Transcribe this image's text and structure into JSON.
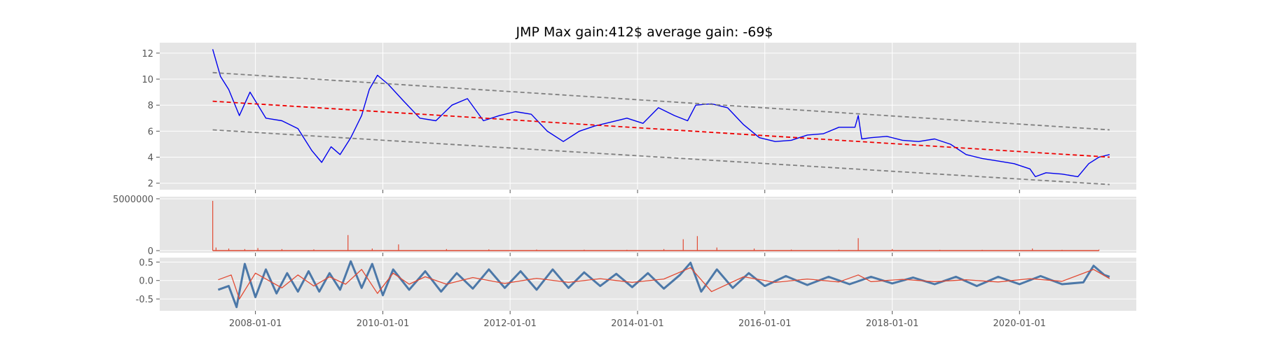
{
  "chart_data": [
    {
      "type": "line",
      "title": "JMP Max gain:412$  average gain: -69$",
      "ylim": [
        1.5,
        12.8
      ],
      "yticks": [
        2,
        4,
        6,
        8,
        10,
        12
      ],
      "grid": true,
      "series": [
        {
          "color": "#0000ee",
          "x": [
            "2007-05-01",
            "2007-06-15",
            "2007-08-01",
            "2007-10-01",
            "2007-12-01",
            "2008-03-01",
            "2008-06-01",
            "2008-09-01",
            "2008-11-20",
            "2009-01-15",
            "2009-03-10",
            "2009-05-01",
            "2009-07-01",
            "2009-09-01",
            "2009-10-15",
            "2009-12-01",
            "2010-02-01",
            "2010-05-01",
            "2010-08-01",
            "2010-11-01",
            "2011-02-01",
            "2011-05-01",
            "2011-08-01",
            "2011-11-01",
            "2012-02-01",
            "2012-05-01",
            "2012-08-01",
            "2012-11-01",
            "2013-02-01",
            "2013-05-01",
            "2013-08-01",
            "2013-11-01",
            "2014-02-01",
            "2014-05-01",
            "2014-08-01",
            "2014-10-15",
            "2014-12-01",
            "2015-03-01",
            "2015-06-01",
            "2015-09-01",
            "2015-12-01",
            "2016-03-01",
            "2016-06-01",
            "2016-09-01",
            "2016-12-01",
            "2017-03-01",
            "2017-06-01",
            "2017-06-20",
            "2017-07-10",
            "2017-09-01",
            "2017-12-01",
            "2018-03-01",
            "2018-06-01",
            "2018-09-01",
            "2018-12-01",
            "2019-03-01",
            "2019-06-01",
            "2019-09-01",
            "2019-12-01",
            "2020-03-01",
            "2020-04-01",
            "2020-06-01",
            "2020-09-01",
            "2020-12-01",
            "2021-02-01",
            "2021-04-01",
            "2021-06-01"
          ],
          "y": [
            12.3,
            10.2,
            9.2,
            7.2,
            9.0,
            7.0,
            6.8,
            6.2,
            4.5,
            3.6,
            4.8,
            4.2,
            5.5,
            7.2,
            9.2,
            10.3,
            9.6,
            8.3,
            7.0,
            6.8,
            8.0,
            8.5,
            6.8,
            7.2,
            7.5,
            7.3,
            6.0,
            5.2,
            6.0,
            6.4,
            6.7,
            7.0,
            6.6,
            7.8,
            7.2,
            6.8,
            8.0,
            8.1,
            7.8,
            6.5,
            5.5,
            5.2,
            5.3,
            5.7,
            5.8,
            6.3,
            6.3,
            7.2,
            5.4,
            5.5,
            5.6,
            5.3,
            5.2,
            5.4,
            5.0,
            4.2,
            3.9,
            3.7,
            3.5,
            3.1,
            2.5,
            2.8,
            2.7,
            2.5,
            3.5,
            4.0,
            4.2
          ]
        },
        {
          "color": "#ee0000",
          "dash": true,
          "x": [
            "2007-05-01",
            "2021-06-01"
          ],
          "y": [
            8.3,
            4.0
          ]
        },
        {
          "color": "#808080",
          "dash": true,
          "x": [
            "2007-05-01",
            "2021-06-01"
          ],
          "y": [
            10.5,
            6.1
          ]
        },
        {
          "color": "#808080",
          "dash": true,
          "x": [
            "2007-05-01",
            "2021-06-01"
          ],
          "y": [
            6.1,
            1.9
          ]
        }
      ]
    },
    {
      "type": "bar",
      "ylim": [
        -200000,
        5200000
      ],
      "yticks": [
        0,
        5000000
      ],
      "grid": true,
      "color": "#e24a33",
      "x": [
        "2007-05-01",
        "2007-05-20",
        "2007-08-01",
        "2007-11-01",
        "2008-01-15",
        "2008-06-01",
        "2008-12-01",
        "2009-06-15",
        "2009-11-01",
        "2010-04-01",
        "2011-01-01",
        "2011-09-01",
        "2012-06-01",
        "2013-03-01",
        "2013-11-01",
        "2014-06-01",
        "2014-09-20",
        "2014-12-10",
        "2015-04-01",
        "2015-11-01",
        "2016-06-01",
        "2017-03-01",
        "2017-06-20",
        "2018-01-01",
        "2018-10-01",
        "2019-06-01",
        "2020-03-15",
        "2020-09-01",
        "2021-04-01"
      ],
      "values": [
        4800000,
        300000,
        200000,
        150000,
        250000,
        150000,
        120000,
        1500000,
        200000,
        600000,
        150000,
        120000,
        100000,
        90000,
        80000,
        150000,
        1100000,
        1400000,
        300000,
        200000,
        100000,
        90000,
        1200000,
        150000,
        80000,
        80000,
        200000,
        80000,
        100000
      ]
    },
    {
      "type": "line",
      "ylim": [
        -0.82,
        0.62
      ],
      "yticks": [
        -0.5,
        0.0,
        0.5
      ],
      "grid": true,
      "series": [
        {
          "color": "#4c78a8",
          "x": [
            "2007-06-01",
            "2007-08-01",
            "2007-09-15",
            "2007-11-01",
            "2008-01-01",
            "2008-03-01",
            "2008-05-01",
            "2008-07-01",
            "2008-09-01",
            "2008-11-01",
            "2009-01-01",
            "2009-03-01",
            "2009-05-01",
            "2009-07-01",
            "2009-09-01",
            "2009-11-01",
            "2010-01-01",
            "2010-03-01",
            "2010-06-01",
            "2010-09-01",
            "2010-12-01",
            "2011-03-01",
            "2011-06-01",
            "2011-09-01",
            "2011-12-01",
            "2012-03-01",
            "2012-06-01",
            "2012-09-01",
            "2012-12-01",
            "2013-03-01",
            "2013-06-01",
            "2013-09-01",
            "2013-12-01",
            "2014-03-01",
            "2014-06-01",
            "2014-09-01",
            "2014-11-01",
            "2015-01-01",
            "2015-04-01",
            "2015-07-01",
            "2015-10-01",
            "2016-01-01",
            "2016-05-01",
            "2016-09-01",
            "2017-01-01",
            "2017-05-01",
            "2017-09-01",
            "2018-01-01",
            "2018-05-01",
            "2018-09-01",
            "2019-01-01",
            "2019-05-01",
            "2019-09-01",
            "2020-01-01",
            "2020-05-01",
            "2020-09-01",
            "2021-01-01",
            "2021-03-01",
            "2021-05-01",
            "2021-06-01"
          ],
          "y": [
            -0.25,
            -0.15,
            -0.72,
            0.45,
            -0.45,
            0.3,
            -0.35,
            0.2,
            -0.3,
            0.25,
            -0.3,
            0.2,
            -0.25,
            0.52,
            -0.2,
            0.45,
            -0.4,
            0.3,
            -0.25,
            0.25,
            -0.3,
            0.2,
            -0.22,
            0.3,
            -0.2,
            0.25,
            -0.25,
            0.3,
            -0.2,
            0.22,
            -0.15,
            0.18,
            -0.18,
            0.2,
            -0.22,
            0.15,
            0.48,
            -0.3,
            0.3,
            -0.2,
            0.2,
            -0.15,
            0.12,
            -0.12,
            0.1,
            -0.1,
            0.1,
            -0.08,
            0.08,
            -0.1,
            0.1,
            -0.15,
            0.1,
            -0.1,
            0.12,
            -0.1,
            -0.05,
            0.4,
            0.15,
            0.1
          ]
        },
        {
          "color": "#e24a33",
          "x": [
            "2007-06-01",
            "2007-08-15",
            "2007-10-01",
            "2008-01-01",
            "2008-06-01",
            "2008-09-01",
            "2008-12-01",
            "2009-03-01",
            "2009-06-01",
            "2009-09-01",
            "2009-12-01",
            "2010-03-01",
            "2010-06-01",
            "2010-09-01",
            "2011-01-01",
            "2011-06-01",
            "2011-12-01",
            "2012-06-01",
            "2012-12-01",
            "2013-06-01",
            "2013-12-01",
            "2014-06-01",
            "2014-11-01",
            "2015-03-01",
            "2015-09-01",
            "2016-03-01",
            "2016-09-01",
            "2017-03-01",
            "2017-06-20",
            "2017-09-01",
            "2018-03-01",
            "2018-09-01",
            "2019-03-01",
            "2019-09-01",
            "2020-03-01",
            "2020-09-01",
            "2021-03-01",
            "2021-06-01"
          ],
          "y": [
            0.02,
            0.15,
            -0.5,
            0.2,
            -0.2,
            0.15,
            -0.15,
            0.1,
            -0.1,
            0.3,
            -0.35,
            0.2,
            -0.1,
            0.1,
            -0.1,
            0.08,
            -0.08,
            0.06,
            -0.05,
            0.05,
            -0.05,
            0.04,
            0.35,
            -0.3,
            0.1,
            -0.05,
            0.04,
            -0.04,
            0.15,
            -0.03,
            0.03,
            -0.03,
            0.02,
            -0.04,
            0.05,
            -0.02,
            0.3,
            0.05
          ]
        }
      ]
    }
  ],
  "x_axis": {
    "ticks": [
      "2008-01-01",
      "2010-01-01",
      "2012-01-01",
      "2014-01-01",
      "2016-01-01",
      "2018-01-01",
      "2020-01-01"
    ],
    "range": [
      "2006-07-01",
      "2021-11-01"
    ]
  }
}
